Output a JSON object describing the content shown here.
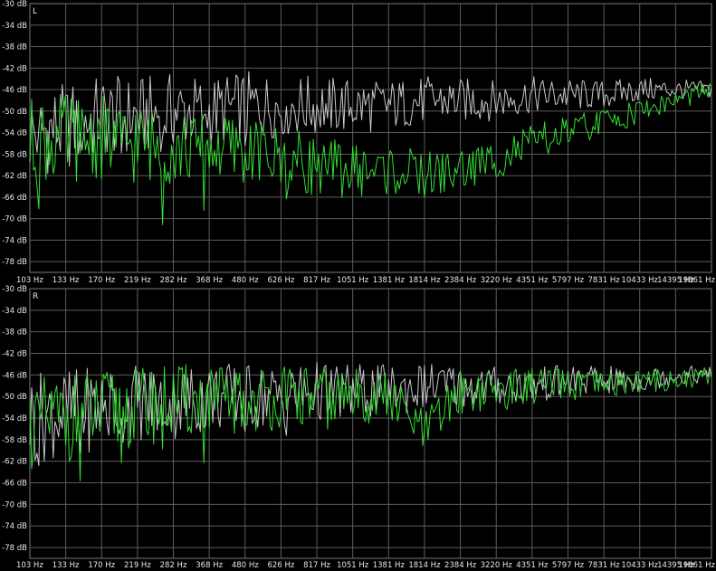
{
  "chart_data": [
    {
      "type": "line",
      "channel_label": "L",
      "x_tick_labels": [
        "103 Hz",
        "133 Hz",
        "170 Hz",
        "219 Hz",
        "282 Hz",
        "368 Hz",
        "480 Hz",
        "626 Hz",
        "817 Hz",
        "1051 Hz",
        "1381 Hz",
        "1814 Hz",
        "2384 Hz",
        "3220 Hz",
        "4351 Hz",
        "5797 Hz",
        "7831 Hz",
        "10433 Hz",
        "14395 Hz",
        "19861 Hz"
      ],
      "y_tick_labels": [
        "-30 dB",
        "-34 dB",
        "-38 dB",
        "-42 dB",
        "-46 dB",
        "-50 dB",
        "-54 dB",
        "-58 dB",
        "-62 dB",
        "-66 dB",
        "-70 dB",
        "-74 dB",
        "-78 dB"
      ],
      "ylim": [
        -80,
        -30
      ],
      "grid": true,
      "series": [
        {
          "color": "#c8c8c8",
          "x": [
            103,
            133,
            170,
            219,
            282,
            368,
            480,
            626,
            817,
            1051,
            1381,
            1814,
            2384,
            3220,
            4351,
            5797,
            7831,
            10433,
            14395,
            19861
          ],
          "values": [
            -54,
            -53,
            -51,
            -51,
            -50,
            -50,
            -49,
            -49,
            -49,
            -49,
            -49,
            -48,
            -48,
            -48,
            -47,
            -47,
            -47,
            -46,
            -46,
            -46
          ]
        },
        {
          "color": "#33dd33",
          "x": [
            103,
            133,
            170,
            219,
            282,
            368,
            480,
            626,
            817,
            1051,
            1381,
            1814,
            2384,
            3220,
            4351,
            5797,
            7831,
            10433,
            14395,
            19861
          ],
          "values": [
            -56,
            -55,
            -55,
            -56,
            -57,
            -57,
            -57,
            -59,
            -60,
            -61,
            -61,
            -62,
            -61,
            -59,
            -56,
            -54,
            -52,
            -50,
            -48,
            -46
          ]
        }
      ]
    },
    {
      "type": "line",
      "channel_label": "R",
      "x_tick_labels": [
        "103 Hz",
        "133 Hz",
        "170 Hz",
        "219 Hz",
        "282 Hz",
        "368 Hz",
        "480 Hz",
        "626 Hz",
        "817 Hz",
        "1051 Hz",
        "1381 Hz",
        "1814 Hz",
        "2384 Hz",
        "3220 Hz",
        "4351 Hz",
        "5797 Hz",
        "7831 Hz",
        "10433 Hz",
        "14395 Hz",
        "19861 Hz"
      ],
      "y_tick_labels": [
        "-30 dB",
        "-34 dB",
        "-38 dB",
        "-42 dB",
        "-46 dB",
        "-50 dB",
        "-54 dB",
        "-58 dB",
        "-62 dB",
        "-66 dB",
        "-70 dB",
        "-74 dB",
        "-78 dB"
      ],
      "ylim": [
        -80,
        -30
      ],
      "grid": true,
      "series": [
        {
          "color": "#c8c8c8",
          "x": [
            103,
            133,
            170,
            219,
            282,
            368,
            480,
            626,
            817,
            1051,
            1381,
            1814,
            2384,
            3220,
            4351,
            5797,
            7831,
            10433,
            14395,
            19861
          ],
          "values": [
            -54,
            -53,
            -52,
            -51,
            -51,
            -50,
            -50,
            -50,
            -49,
            -49,
            -49,
            -48,
            -48,
            -48,
            -48,
            -47,
            -47,
            -47,
            -46,
            -46
          ]
        },
        {
          "color": "#33dd33",
          "x": [
            103,
            133,
            170,
            219,
            282,
            368,
            480,
            626,
            817,
            1051,
            1381,
            1814,
            2384,
            3220,
            4351,
            5797,
            7831,
            10433,
            14395,
            19861
          ],
          "values": [
            -55,
            -54,
            -53,
            -52,
            -51,
            -51,
            -51,
            -50,
            -50,
            -50,
            -50,
            -57,
            -49,
            -49,
            -48,
            -48,
            -48,
            -47,
            -47,
            -46
          ]
        }
      ]
    }
  ]
}
